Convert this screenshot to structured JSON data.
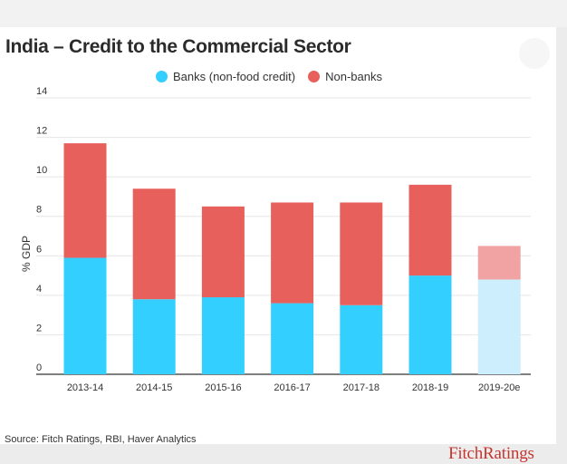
{
  "title": "India – Credit to the Commercial Sector",
  "source": "Source: Fitch Ratings, RBI, Haver Analytics",
  "brand": "FitchRatings",
  "colors": {
    "banks": "#33cfff",
    "nonbanks": "#e8605b",
    "banks_estimate": "#cceefd",
    "nonbanks_estimate": "#f0a3a2"
  },
  "chart_data": {
    "type": "bar",
    "stacked": true,
    "categories": [
      "2013-14",
      "2014-15",
      "2015-16",
      "2016-17",
      "2017-18",
      "2018-19",
      "2019-20e"
    ],
    "series": [
      {
        "name": "Banks (non-food credit)",
        "values": [
          5.9,
          3.8,
          3.9,
          3.6,
          3.5,
          5.0,
          4.8
        ]
      },
      {
        "name": "Non-banks",
        "values": [
          5.8,
          5.6,
          4.6,
          5.1,
          5.2,
          4.6,
          1.7
        ]
      }
    ],
    "estimate_categories": [
      "2019-20e"
    ],
    "ylabel": "% GDP",
    "xlabel": "",
    "ylim": [
      0,
      14
    ],
    "yticks": [
      0,
      2,
      4,
      6,
      8,
      10,
      12,
      14
    ],
    "grid": true,
    "legend_position": "top-center"
  }
}
